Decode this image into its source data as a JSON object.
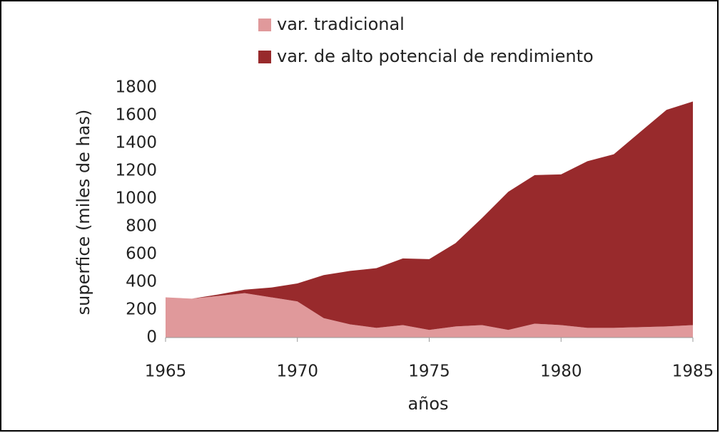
{
  "chart_data": {
    "type": "area",
    "x": [
      1965,
      1966,
      1967,
      1968,
      1969,
      1970,
      1971,
      1972,
      1973,
      1974,
      1975,
      1976,
      1977,
      1978,
      1979,
      1980,
      1981,
      1982,
      1983,
      1984,
      1985
    ],
    "series": [
      {
        "name": "var. tradicional",
        "color": "#e0999b",
        "values": [
          290,
          280,
          300,
          320,
          290,
          260,
          140,
          95,
          70,
          90,
          55,
          80,
          90,
          55,
          100,
          90,
          70,
          70,
          75,
          80,
          90
        ]
      },
      {
        "name": "var. de alto potencial de rendimiento",
        "color": "#982a2c",
        "values": [
          0,
          0,
          10,
          25,
          70,
          130,
          310,
          385,
          430,
          480,
          510,
          600,
          770,
          995,
          1070,
          1085,
          1200,
          1250,
          1405,
          1560,
          1610
        ]
      }
    ],
    "stacked": true,
    "xlabel": "años",
    "ylabel": "superfice (miles de has)",
    "xlim": [
      1965,
      1985
    ],
    "xticks": [
      1965,
      1970,
      1975,
      1980,
      1985
    ],
    "ylim": [
      0,
      1800
    ],
    "yticks": [
      0,
      200,
      400,
      600,
      800,
      1000,
      1200,
      1400,
      1600,
      1800
    ],
    "grid": false,
    "legend": "top"
  }
}
